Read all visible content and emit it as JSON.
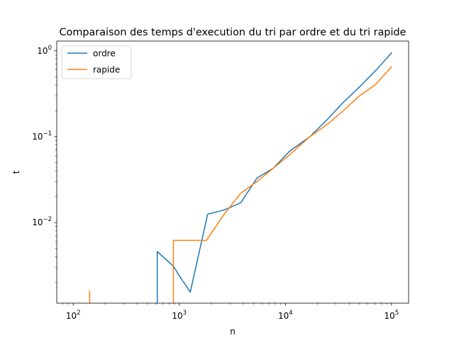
{
  "chart_data": {
    "type": "line",
    "title": "Comparaison des temps d'execution du tri par ordre et du tri rapide",
    "xlabel": "n",
    "ylabel": "t",
    "xscale": "log",
    "yscale": "log",
    "xlim": [
      70,
      145000
    ],
    "ylim": [
      0.00115,
      1.3
    ],
    "xticks": [
      {
        "value": 100,
        "base": "10",
        "exp": "2"
      },
      {
        "value": 1000,
        "base": "10",
        "exp": "3"
      },
      {
        "value": 10000,
        "base": "10",
        "exp": "4"
      },
      {
        "value": 100000,
        "base": "10",
        "exp": "5"
      }
    ],
    "yticks": [
      {
        "value": 0.01,
        "base": "10",
        "exp": "−2"
      },
      {
        "value": 0.1,
        "base": "10",
        "exp": "−1"
      },
      {
        "value": 1,
        "base": "10",
        "exp": "0"
      }
    ],
    "legend_position": "upper-left",
    "grid": false,
    "series": [
      {
        "name": "ordre",
        "color": "#1f77b4",
        "points": [
          [
            620,
            0.0009
          ],
          [
            620,
            0.0046
          ],
          [
            880,
            0.0031
          ],
          [
            1000,
            0.0024
          ],
          [
            1270,
            0.00155
          ],
          [
            1850,
            0.0125
          ],
          [
            2650,
            0.014
          ],
          [
            3800,
            0.017
          ],
          [
            5400,
            0.033
          ],
          [
            7700,
            0.043
          ],
          [
            11000,
            0.068
          ],
          [
            17000,
            0.1
          ],
          [
            25000,
            0.16
          ],
          [
            35000,
            0.25
          ],
          [
            50000,
            0.38
          ],
          [
            72000,
            0.6
          ],
          [
            100000,
            0.95
          ]
        ]
      },
      {
        "name": "rapide",
        "color": "#ff7f0e",
        "points_segments": [
          [
            [
              143,
              0.0009
            ],
            [
              143,
              0.0016
            ]
          ],
          [
            [
              880,
              0.0009
            ],
            [
              880,
              0.0062
            ],
            [
              1800,
              0.0062
            ],
            [
              2650,
              0.0125
            ],
            [
              3800,
              0.022
            ],
            [
              5400,
              0.03
            ],
            [
              7700,
              0.043
            ],
            [
              11000,
              0.062
            ],
            [
              17000,
              0.1
            ],
            [
              25000,
              0.14
            ],
            [
              35000,
              0.2
            ],
            [
              50000,
              0.3
            ],
            [
              70000,
              0.4
            ],
            [
              100000,
              0.65
            ]
          ]
        ]
      }
    ]
  }
}
